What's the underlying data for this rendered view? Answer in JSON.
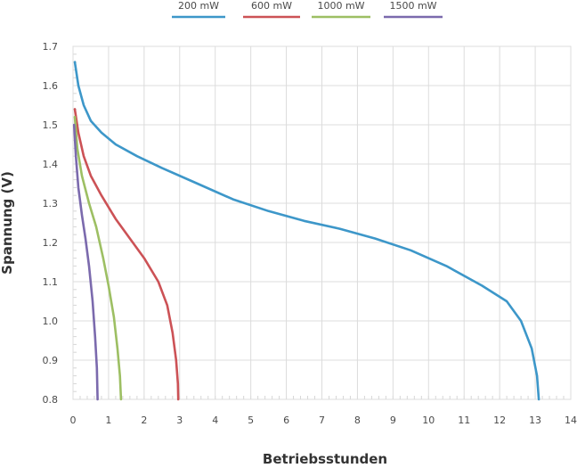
{
  "chart_data": {
    "type": "line",
    "xlabel": "Betriebsstunden",
    "ylabel": "Spannung (V)",
    "xlim": [
      0,
      14
    ],
    "ylim": [
      0.8,
      1.7
    ],
    "xticks": [
      "0",
      "1",
      "2",
      "3",
      "4",
      "5",
      "6",
      "7",
      "8",
      "9",
      "10",
      "11",
      "12",
      "13",
      "14"
    ],
    "yticks": [
      "0.8",
      "0.9",
      "1.0",
      "1.1",
      "1.2",
      "1.3",
      "1.4",
      "1.5",
      "1.6",
      "1.7"
    ],
    "grid": true,
    "legend_position": "top",
    "series": [
      {
        "name": "200 mW",
        "color": "#3d97c9",
        "points": [
          [
            0.05,
            1.66
          ],
          [
            0.15,
            1.6
          ],
          [
            0.3,
            1.55
          ],
          [
            0.5,
            1.51
          ],
          [
            0.8,
            1.48
          ],
          [
            1.2,
            1.45
          ],
          [
            1.8,
            1.42
          ],
          [
            2.5,
            1.39
          ],
          [
            3.5,
            1.35
          ],
          [
            4.5,
            1.31
          ],
          [
            5.5,
            1.28
          ],
          [
            6.5,
            1.255
          ],
          [
            7.5,
            1.235
          ],
          [
            8.5,
            1.21
          ],
          [
            9.5,
            1.18
          ],
          [
            10.5,
            1.14
          ],
          [
            11.5,
            1.09
          ],
          [
            12.2,
            1.05
          ],
          [
            12.6,
            1.0
          ],
          [
            12.9,
            0.93
          ],
          [
            13.05,
            0.86
          ],
          [
            13.1,
            0.8
          ]
        ]
      },
      {
        "name": "600 mW",
        "color": "#cc5256",
        "points": [
          [
            0.05,
            1.54
          ],
          [
            0.15,
            1.48
          ],
          [
            0.3,
            1.42
          ],
          [
            0.5,
            1.37
          ],
          [
            0.8,
            1.32
          ],
          [
            1.2,
            1.26
          ],
          [
            1.6,
            1.21
          ],
          [
            2.0,
            1.16
          ],
          [
            2.4,
            1.1
          ],
          [
            2.65,
            1.04
          ],
          [
            2.8,
            0.97
          ],
          [
            2.9,
            0.9
          ],
          [
            2.95,
            0.84
          ],
          [
            2.96,
            0.8
          ]
        ]
      },
      {
        "name": "1000 mW",
        "color": "#9dbf63",
        "points": [
          [
            0.05,
            1.52
          ],
          [
            0.12,
            1.44
          ],
          [
            0.25,
            1.37
          ],
          [
            0.45,
            1.3
          ],
          [
            0.65,
            1.24
          ],
          [
            0.85,
            1.16
          ],
          [
            1.0,
            1.09
          ],
          [
            1.15,
            1.01
          ],
          [
            1.25,
            0.93
          ],
          [
            1.32,
            0.86
          ],
          [
            1.35,
            0.8
          ]
        ]
      },
      {
        "name": "1500 mW",
        "color": "#7b6aad",
        "points": [
          [
            0.03,
            1.5
          ],
          [
            0.08,
            1.42
          ],
          [
            0.15,
            1.34
          ],
          [
            0.25,
            1.27
          ],
          [
            0.35,
            1.21
          ],
          [
            0.45,
            1.14
          ],
          [
            0.55,
            1.05
          ],
          [
            0.62,
            0.96
          ],
          [
            0.67,
            0.88
          ],
          [
            0.69,
            0.8
          ]
        ]
      }
    ]
  }
}
